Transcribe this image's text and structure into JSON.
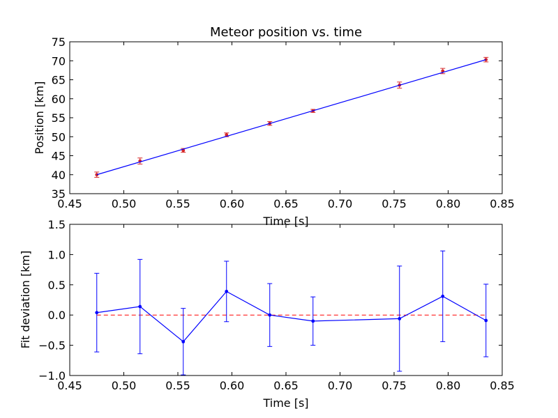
{
  "chart_data": [
    {
      "type": "scatter",
      "title": "Meteor position vs. time",
      "xlabel": "Time [s]",
      "ylabel": "Position [km]",
      "xlim": [
        0.45,
        0.85
      ],
      "ylim": [
        35,
        75
      ],
      "x_ticks": [
        "0.45",
        "0.50",
        "0.55",
        "0.60",
        "0.65",
        "0.70",
        "0.75",
        "0.80",
        "0.85"
      ],
      "y_ticks": [
        "35",
        "40",
        "45",
        "50",
        "55",
        "60",
        "65",
        "70",
        "75"
      ],
      "grid": false,
      "series": [
        {
          "marker": "point",
          "color": "#d62728",
          "x": [
            0.475,
            0.515,
            0.555,
            0.595,
            0.635,
            0.675,
            0.755,
            0.795,
            0.835
          ],
          "y": [
            40.0,
            43.6,
            46.4,
            50.5,
            53.5,
            56.8,
            63.6,
            67.3,
            70.3
          ],
          "yerr": [
            0.7,
            0.8,
            0.5,
            0.5,
            0.5,
            0.4,
            0.8,
            0.7,
            0.6
          ]
        },
        {
          "marker": "line",
          "color": "#0000ff",
          "x": [
            0.475,
            0.835
          ],
          "y": [
            40.0,
            70.3
          ]
        }
      ]
    },
    {
      "type": "line",
      "title": "",
      "xlabel": "Time [s]",
      "ylabel": "Fit deviation [km]",
      "xlim": [
        0.45,
        0.85
      ],
      "ylim": [
        -1.0,
        1.5
      ],
      "x_ticks": [
        "0.45",
        "0.50",
        "0.55",
        "0.60",
        "0.65",
        "0.70",
        "0.75",
        "0.80",
        "0.85"
      ],
      "y_ticks": [
        "−1.0",
        "−0.5",
        "0.0",
        "0.5",
        "1.0",
        "1.5"
      ],
      "grid": false,
      "reference_line": {
        "y": 0.0,
        "color": "#ff0000",
        "style": "dashed"
      },
      "series": [
        {
          "marker": "point-line",
          "color": "#0000ff",
          "x": [
            0.475,
            0.515,
            0.555,
            0.595,
            0.635,
            0.675,
            0.755,
            0.795,
            0.835
          ],
          "y": [
            0.04,
            0.14,
            -0.44,
            0.39,
            0.0,
            -0.1,
            -0.06,
            0.31,
            -0.09
          ],
          "yerr": [
            0.65,
            0.78,
            0.55,
            0.5,
            0.52,
            0.4,
            0.87,
            0.75,
            0.6
          ]
        }
      ]
    }
  ]
}
